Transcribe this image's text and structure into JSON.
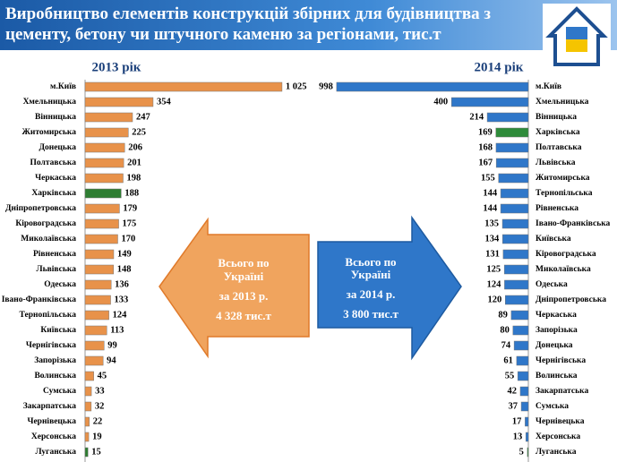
{
  "header": {
    "title": "Виробництво елементів конструкцій збірних для будівництва з цементу, бетону чи штучного каменю за регіонами, тис.т"
  },
  "chart_data": [
    {
      "type": "bar",
      "orientation": "horizontal",
      "x_reversed": false,
      "title": "2013 рік",
      "categories": [
        "м.Київ",
        "Хмельницька",
        "Вінницька",
        "Житомирська",
        "Донецька",
        "Полтавська",
        "Черкаська",
        "Харківська",
        "Дніпропетровська",
        "Кіровоградська",
        "Миколаївська",
        "Рівненська",
        "Львівська",
        "Одеська",
        "Івано-Франківська",
        "Тернопільська",
        "Київська",
        "Чернігівська",
        "Запорізька",
        "Волинська",
        "Сумська",
        "Закарпатська",
        "Чернівецька",
        "Херсонська",
        "Луганська"
      ],
      "values": [
        1025,
        354,
        247,
        225,
        206,
        201,
        198,
        188,
        179,
        175,
        170,
        149,
        148,
        136,
        133,
        124,
        113,
        99,
        94,
        45,
        33,
        32,
        22,
        19,
        15
      ],
      "value_labels": [
        "1 025",
        "354",
        "247",
        "225",
        "206",
        "201",
        "198",
        "188",
        "179",
        "175",
        "170",
        "149",
        "148",
        "136",
        "133",
        "124",
        "113",
        "99",
        "94",
        "45",
        "33",
        "32",
        "22",
        "19",
        "15"
      ],
      "colors": [
        "#e8924a",
        "#e8924a",
        "#e8924a",
        "#e8924a",
        "#e8924a",
        "#e8924a",
        "#e8924a",
        "#2e7d32",
        "#e8924a",
        "#e8924a",
        "#e8924a",
        "#e8924a",
        "#e8924a",
        "#e8924a",
        "#e8924a",
        "#e8924a",
        "#e8924a",
        "#e8924a",
        "#e8924a",
        "#e8924a",
        "#e8924a",
        "#e8924a",
        "#e8924a",
        "#e8924a",
        "#2e7d32"
      ],
      "xlim": [
        0,
        1030
      ],
      "annotations": [
        "Всього по",
        "Україні",
        "за 2013 р.",
        "4 328  тис.т"
      ]
    },
    {
      "type": "bar",
      "orientation": "horizontal",
      "x_reversed": true,
      "title": "2014 рік",
      "categories": [
        "м.Київ",
        "Хмельницька",
        "Вінницька",
        "Харківська",
        "Полтавська",
        "Львівська",
        "Житомирська",
        "Тернопільська",
        "Рівненська",
        "Івано-Франківська",
        "Київська",
        "Кіровоградська",
        "Миколаївська",
        "Одеська",
        "Дніпропетровська",
        "Черкаська",
        "Запорізька",
        "Донецька",
        "Чернігівська",
        "Волинська",
        "Закарпатська",
        "Сумська",
        "Чернівецька",
        "Херсонська",
        "Луганська"
      ],
      "values": [
        998,
        400,
        214,
        169,
        168,
        167,
        155,
        144,
        144,
        135,
        134,
        131,
        125,
        124,
        120,
        89,
        80,
        74,
        61,
        55,
        42,
        37,
        17,
        13,
        5
      ],
      "colors": [
        "#2f77c9",
        "#2f77c9",
        "#2f77c9",
        "#2e8b3a",
        "#2f77c9",
        "#2f77c9",
        "#2f77c9",
        "#2f77c9",
        "#2f77c9",
        "#2f77c9",
        "#2f77c9",
        "#2f77c9",
        "#2f77c9",
        "#2f77c9",
        "#2f77c9",
        "#2f77c9",
        "#2f77c9",
        "#2f77c9",
        "#2f77c9",
        "#2f77c9",
        "#2f77c9",
        "#2f77c9",
        "#2f77c9",
        "#2f77c9",
        "#2e8b3a"
      ],
      "xlim": [
        0,
        1030
      ],
      "annotations": [
        "Всього по",
        "Україні",
        "за 2014 р.",
        "3 800 тис.т"
      ]
    }
  ]
}
